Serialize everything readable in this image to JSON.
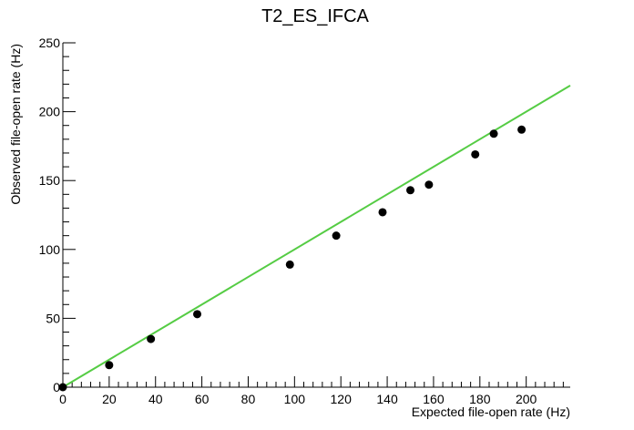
{
  "chart_data": {
    "type": "scatter",
    "title": "T2_ES_IFCA",
    "xlabel": "Expected file-open rate (Hz)",
    "ylabel": "Observed file-open rate (Hz)",
    "xlim": [
      0,
      219
    ],
    "ylim": [
      0,
      250
    ],
    "x_ticks": [
      0,
      20,
      40,
      60,
      80,
      100,
      120,
      140,
      160,
      180,
      200
    ],
    "y_ticks": [
      0,
      50,
      100,
      150,
      200,
      250
    ],
    "grid": false,
    "legend": "none",
    "series": [
      {
        "kind": "points",
        "marker_color": "#000000",
        "points": [
          {
            "x": 0,
            "y": 0
          },
          {
            "x": 20,
            "y": 16
          },
          {
            "x": 38,
            "y": 35
          },
          {
            "x": 58,
            "y": 53
          },
          {
            "x": 98,
            "y": 89
          },
          {
            "x": 118,
            "y": 110
          },
          {
            "x": 138,
            "y": 127
          },
          {
            "x": 150,
            "y": 143
          },
          {
            "x": 158,
            "y": 147
          },
          {
            "x": 178,
            "y": 169
          },
          {
            "x": 186,
            "y": 184
          },
          {
            "x": 198,
            "y": 187
          }
        ]
      },
      {
        "kind": "line",
        "line_color": "#55cc44",
        "points": [
          {
            "x": 0,
            "y": 0
          },
          {
            "x": 219,
            "y": 219
          }
        ]
      }
    ]
  }
}
